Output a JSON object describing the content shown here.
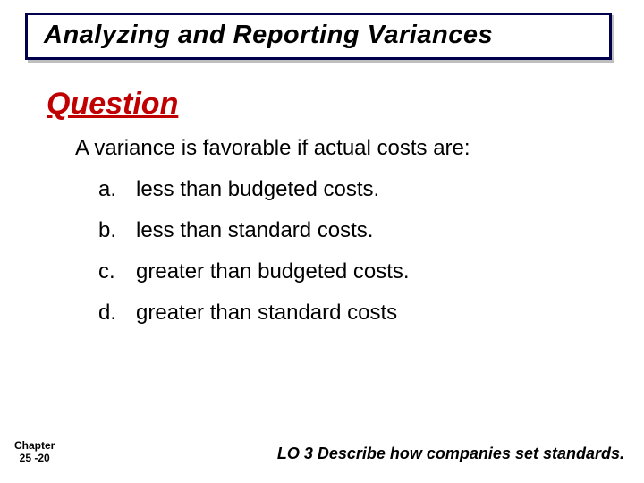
{
  "title": "Analyzing and Reporting Variances",
  "question_heading": "Question",
  "question_text": "A variance is favorable if actual costs are:",
  "options": [
    {
      "letter": "a.",
      "text": "less than budgeted costs.",
      "circled": false
    },
    {
      "letter": "b.",
      "text": "less than standard costs.",
      "circled": true
    },
    {
      "letter": "c.",
      "text": "greater than budgeted costs.",
      "circled": false
    },
    {
      "letter": "d.",
      "text": "greater than standard costs",
      "circled": false
    }
  ],
  "footer_left_line1": "Chapter",
  "footer_left_line2": "25 -20",
  "footer_right": "LO 3  Describe how companies set standards.",
  "colors": {
    "title_border": "#00004d",
    "title_shadow": "#bfbfbf",
    "heading_red": "#c00000",
    "circle_red": "#c00000",
    "text_black": "#000000",
    "background": "#ffffff"
  },
  "fonts": {
    "main_family": "Comic Sans MS",
    "footer_left_family": "Arial",
    "title_size_pt": 22,
    "heading_size_pt": 25,
    "body_size_pt": 18,
    "footer_left_size_pt": 9,
    "footer_right_size_pt": 14
  }
}
